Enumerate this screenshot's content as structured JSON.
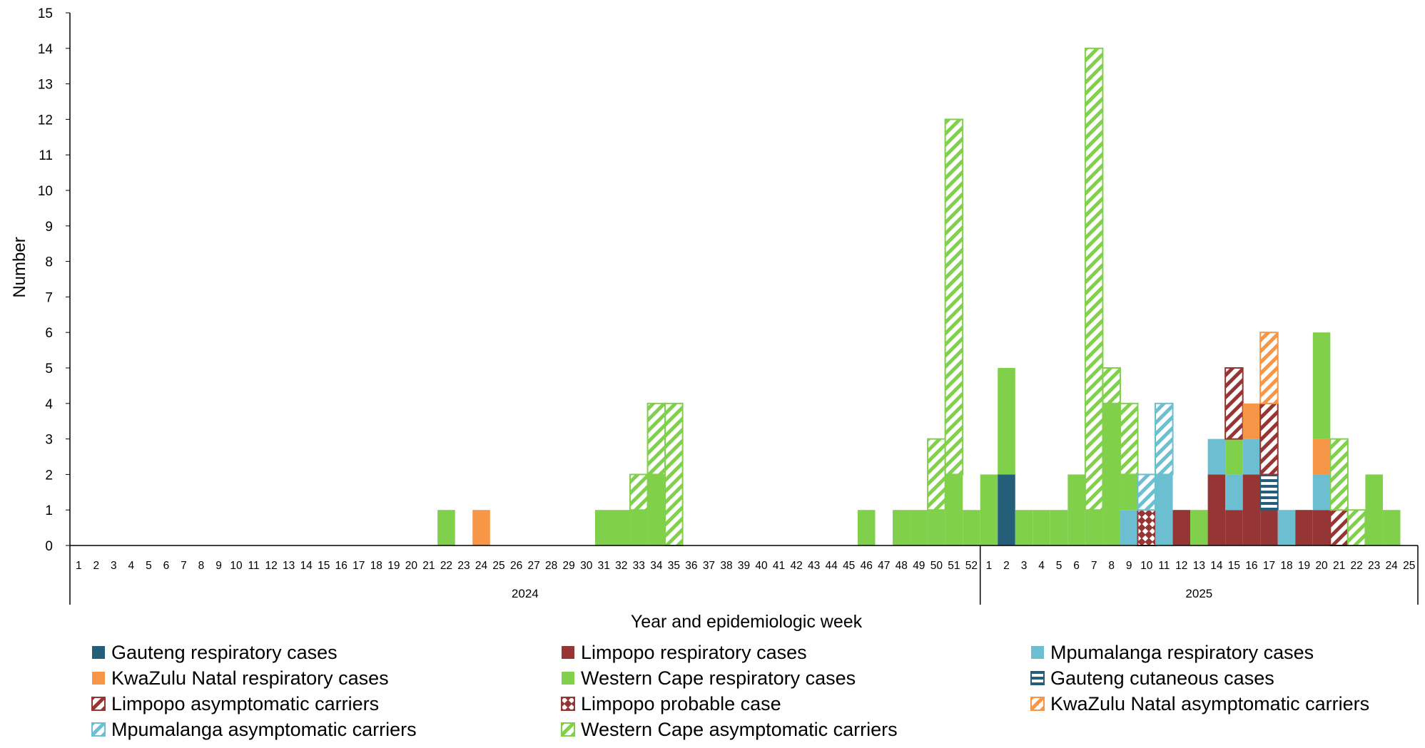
{
  "chart_data": {
    "type": "bar",
    "stacked": true,
    "title": "",
    "xlabel": "Year and epidemiologic week",
    "ylabel": "Number",
    "ylim": [
      0,
      15
    ],
    "yticks": [
      0,
      1,
      2,
      3,
      4,
      5,
      6,
      7,
      8,
      9,
      10,
      11,
      12,
      13,
      14,
      15
    ],
    "grid": false,
    "legend_position": "bottom",
    "year_groups": [
      {
        "label": "2024",
        "weeks": [
          "1",
          "2",
          "3",
          "4",
          "5",
          "6",
          "7",
          "8",
          "9",
          "10",
          "11",
          "12",
          "13",
          "14",
          "15",
          "16",
          "17",
          "18",
          "19",
          "20",
          "21",
          "22",
          "23",
          "24",
          "25",
          "26",
          "27",
          "28",
          "29",
          "30",
          "31",
          "32",
          "33",
          "34",
          "35",
          "36",
          "37",
          "38",
          "39",
          "40",
          "41",
          "42",
          "43",
          "44",
          "45",
          "46",
          "47",
          "48",
          "49",
          "50",
          "51",
          "52"
        ]
      },
      {
        "label": "2025",
        "weeks": [
          "1",
          "2",
          "3",
          "4",
          "5",
          "6",
          "7",
          "8",
          "9",
          "10",
          "11",
          "12",
          "13",
          "14",
          "15",
          "16",
          "17",
          "18",
          "19",
          "20",
          "21",
          "22",
          "23",
          "24",
          "25"
        ]
      }
    ],
    "series": [
      {
        "name": "Gauteng respiratory cases",
        "color": "#255e79",
        "pattern": "solid",
        "values": {
          "2025-2": 2
        }
      },
      {
        "name": "Limpopo respiratory cases",
        "color": "#963634",
        "pattern": "solid",
        "values": {
          "2025-12": 1,
          "2025-14": 2,
          "2025-15": 1,
          "2025-16": 2,
          "2025-17": 1,
          "2025-19": 1,
          "2025-20": 1
        }
      },
      {
        "name": "Mpumalanga respiratory cases",
        "color": "#6cbfd1",
        "pattern": "solid",
        "values": {
          "2025-9": 1,
          "2025-11": 2,
          "2025-14": 1,
          "2025-15": 1,
          "2025-16": 1,
          "2025-18": 1,
          "2025-20": 1
        }
      },
      {
        "name": "KwaZulu Natal respiratory cases",
        "color": "#f79646",
        "pattern": "solid",
        "values": {
          "2024-24": 1,
          "2025-16": 1,
          "2025-20": 1
        }
      },
      {
        "name": "Western Cape respiratory cases",
        "color": "#80d04b",
        "pattern": "solid",
        "values": {
          "2024-22": 1,
          "2024-31": 1,
          "2024-32": 1,
          "2024-33": 1,
          "2024-34": 2,
          "2024-46": 1,
          "2024-48": 1,
          "2024-49": 1,
          "2024-50": 1,
          "2024-51": 2,
          "2024-52": 1,
          "2025-1": 2,
          "2025-2": 3,
          "2025-3": 1,
          "2025-4": 1,
          "2025-5": 1,
          "2025-6": 2,
          "2025-7": 1,
          "2025-8": 4,
          "2025-9": 1,
          "2025-13": 1,
          "2025-15": 1,
          "2025-20": 3,
          "2025-23": 2,
          "2025-24": 1
        }
      },
      {
        "name": "Gauteng cutaneous cases",
        "color": "#255e79",
        "pattern": "hbars",
        "values": {
          "2025-17": 1
        }
      },
      {
        "name": "Limpopo asymptomatic carriers",
        "color": "#963634",
        "pattern": "diag",
        "values": {
          "2025-15": 2,
          "2025-17": 2,
          "2025-21": 1
        }
      },
      {
        "name": "Limpopo probable case",
        "color": "#963634",
        "pattern": "checker",
        "values": {
          "2025-10": 1
        }
      },
      {
        "name": "KwaZulu Natal asymptomatic carriers",
        "color": "#f79646",
        "pattern": "diag",
        "values": {
          "2025-17": 2
        }
      },
      {
        "name": "Mpumalanga asymptomatic carriers",
        "color": "#6cbfd1",
        "pattern": "diag",
        "values": {
          "2025-10": 1,
          "2025-11": 2
        }
      },
      {
        "name": "Western Cape asymptomatic carriers",
        "color": "#80d04b",
        "pattern": "diag",
        "values": {
          "2024-33": 1,
          "2024-34": 2,
          "2024-35": 4,
          "2024-50": 2,
          "2024-51": 10,
          "2025-7": 13,
          "2025-8": 1,
          "2025-9": 2,
          "2025-21": 2,
          "2025-22": 1
        }
      }
    ]
  }
}
